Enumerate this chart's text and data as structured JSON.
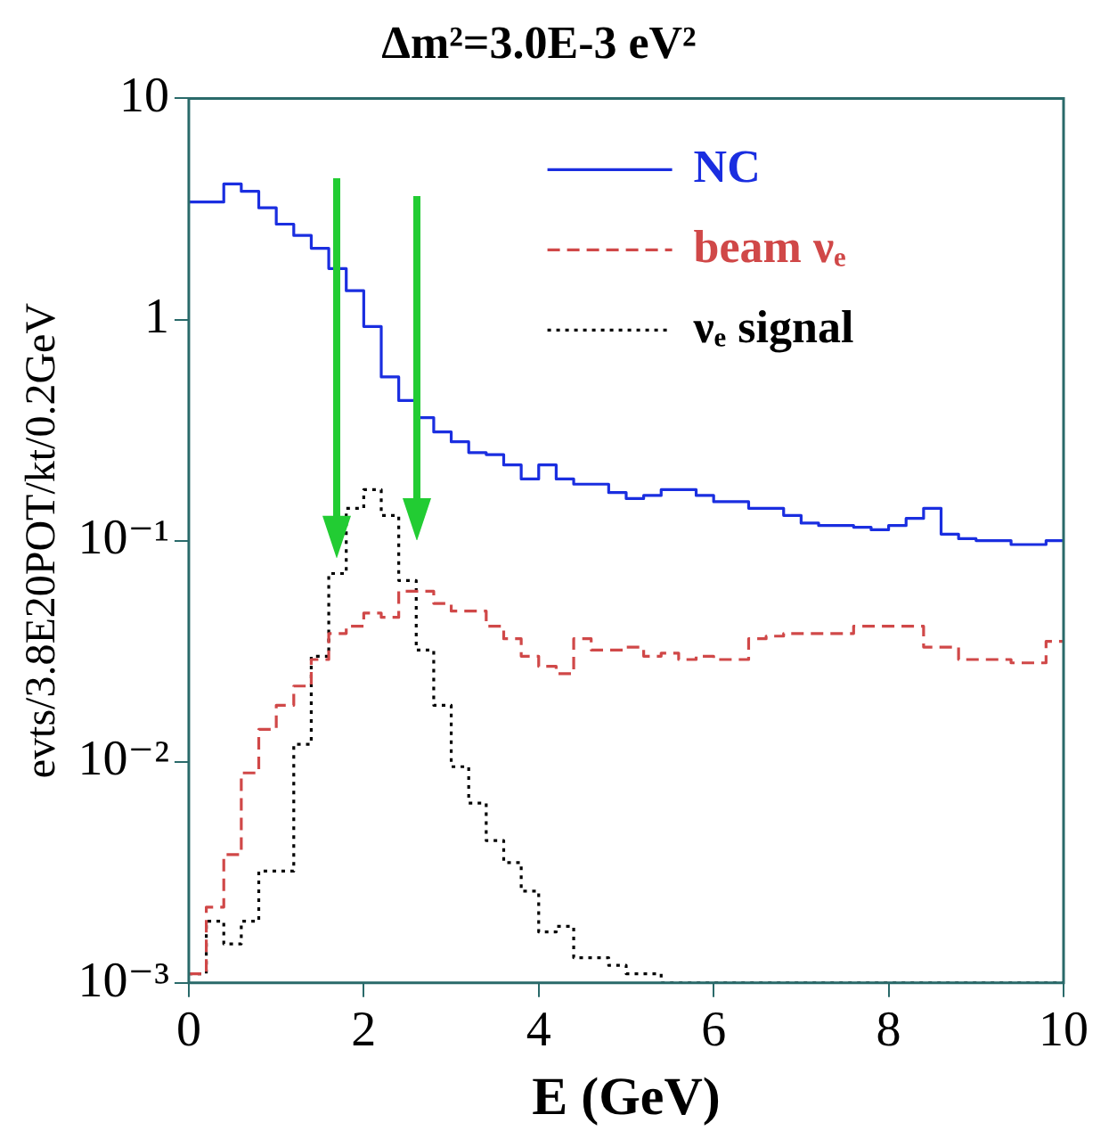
{
  "chart_data": {
    "type": "histogram",
    "title": "Δm²=3.0E-3 eV²",
    "xlabel": "E (GeV)",
    "ylabel": "evts/3.8E20POT/kt/0.2GeV",
    "bins": [
      0,
      0.2,
      0.4,
      0.6,
      0.8,
      1,
      1.2,
      1.4,
      1.6,
      1.8,
      2,
      2.2,
      2.4,
      2.6,
      2.8,
      3,
      3.2,
      3.4,
      3.6,
      3.8,
      4,
      4.2,
      4.4,
      4.6,
      4.8,
      5,
      5.2,
      5.4,
      5.6,
      5.8,
      6,
      6.2,
      6.4,
      6.6,
      6.8,
      7,
      7.2,
      7.4,
      7.6,
      7.8,
      8,
      8.2,
      8.4,
      8.6,
      8.8,
      9,
      9.2,
      9.4,
      9.6,
      9.8,
      10
    ],
    "series": [
      {
        "name": "NC",
        "color": "#1a2ee0",
        "line_style": "solid",
        "values": [
          3.4,
          3.4,
          4.1,
          3.8,
          3.2,
          2.7,
          2.4,
          2.1,
          1.7,
          1.35,
          0.93,
          0.55,
          0.43,
          0.36,
          0.31,
          0.28,
          0.25,
          0.245,
          0.22,
          0.19,
          0.22,
          0.19,
          0.18,
          0.18,
          0.165,
          0.155,
          0.16,
          0.17,
          0.17,
          0.16,
          0.15,
          0.15,
          0.14,
          0.14,
          0.13,
          0.12,
          0.117,
          0.117,
          0.115,
          0.112,
          0.117,
          0.126,
          0.14,
          0.107,
          0.102,
          0.1,
          0.1,
          0.096,
          0.096,
          0.1
        ]
      },
      {
        "name": "beam νₑ",
        "color": "#d04848",
        "line_style": "dashed",
        "values": [
          0.0011,
          0.0022,
          0.0038,
          0.0089,
          0.014,
          0.018,
          0.022,
          0.029,
          0.038,
          0.041,
          0.047,
          0.045,
          0.059,
          0.059,
          0.052,
          0.048,
          0.048,
          0.041,
          0.036,
          0.03,
          0.027,
          0.025,
          0.036,
          0.032,
          0.032,
          0.033,
          0.03,
          0.031,
          0.029,
          0.03,
          0.029,
          0.029,
          0.036,
          0.037,
          0.038,
          0.038,
          0.038,
          0.038,
          0.041,
          0.041,
          0.041,
          0.041,
          0.033,
          0.033,
          0.029,
          0.029,
          0.029,
          0.028,
          0.028,
          0.035
        ]
      },
      {
        "name": "νₑ signal",
        "color": "#000000",
        "line_style": "dotted",
        "values": [
          0.0011,
          0.0019,
          0.0015,
          0.0019,
          0.0032,
          0.0032,
          0.012,
          0.03,
          0.071,
          0.14,
          0.17,
          0.13,
          0.066,
          0.032,
          0.018,
          0.0095,
          0.0065,
          0.0044,
          0.0035,
          0.0026,
          0.0017,
          0.0018,
          0.0013,
          0.0013,
          0.0012,
          0.0011,
          0.0011,
          0.001,
          0.001,
          0.001,
          0.001,
          0.001,
          0.001,
          0.001,
          0.001,
          0.001,
          0.001,
          0.001,
          0.001,
          0.001,
          0.001,
          0.001,
          0.001,
          0.001,
          0.001,
          0.001,
          0.001,
          0.001,
          0.001,
          0.001
        ]
      }
    ],
    "xlim": [
      0,
      10
    ],
    "xticks": [
      0,
      2,
      4,
      6,
      8,
      10
    ],
    "log": true,
    "ylim": [
      0.001,
      10
    ],
    "yticks": [
      {
        "value": 0.001,
        "label": "10⁻³"
      },
      {
        "value": 0.01,
        "label": "10⁻²"
      },
      {
        "value": 0.1,
        "label": "10⁻¹"
      },
      1,
      10
    ],
    "grid": false,
    "legend": "top"
  }
}
